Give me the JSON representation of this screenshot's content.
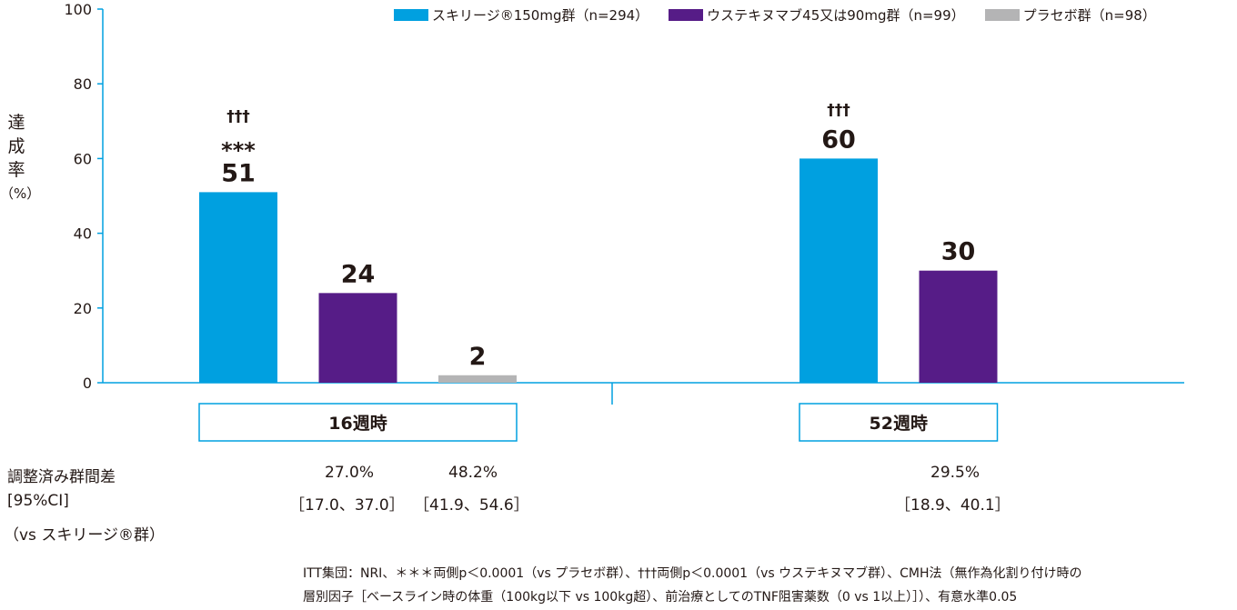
{
  "chart_data": {
    "type": "bar",
    "ylabel_chars": [
      "達",
      "成",
      "率"
    ],
    "ylabel_unit": "（%）",
    "ylim": [
      0,
      100
    ],
    "yticks": [
      0,
      20,
      40,
      60,
      80,
      100
    ],
    "categories": [
      "16週時",
      "52週時"
    ],
    "series": [
      {
        "name": "スキリージ®150mg群（n=294）",
        "color": "#00a0e0",
        "values": [
          51,
          60
        ]
      },
      {
        "name": "ウステキヌマブ45又は90mg群（n=99）",
        "color": "#561c87",
        "values": [
          24,
          30
        ]
      },
      {
        "name": "プラセボ群（n=98）",
        "color": "#b4b4b5",
        "values": [
          2,
          null
        ]
      }
    ],
    "annotations": [
      {
        "category": "16週時",
        "series": 0,
        "lines": [
          "†††",
          "***"
        ]
      },
      {
        "category": "52週時",
        "series": 0,
        "lines": [
          "†††"
        ]
      }
    ],
    "legend_position": "top-right"
  },
  "table": {
    "row_labels": [
      "調整済み群間差",
      "[95%CI]",
      "（vs スキリージ®群）"
    ],
    "cols": [
      {
        "diff": "27.0%",
        "ci": "［17.0、37.0］"
      },
      {
        "diff": "48.2%",
        "ci": "［41.9、54.6］"
      },
      {
        "diff": "29.5%",
        "ci": "［18.9、40.1］"
      }
    ]
  },
  "footnote": [
    "ITT集団：NRI、＊＊＊両側p＜0.0001（vs プラセボ群）、†††両側p＜0.0001（vs ウステキヌマブ群）、CMH法（無作為化割り付け時の",
    "層別因子［ベースライン時の体重（100kg以下 vs 100kg超）、前治療としてのTNF阻害薬数（0 vs 1以上）］）、有意水準0.05"
  ]
}
